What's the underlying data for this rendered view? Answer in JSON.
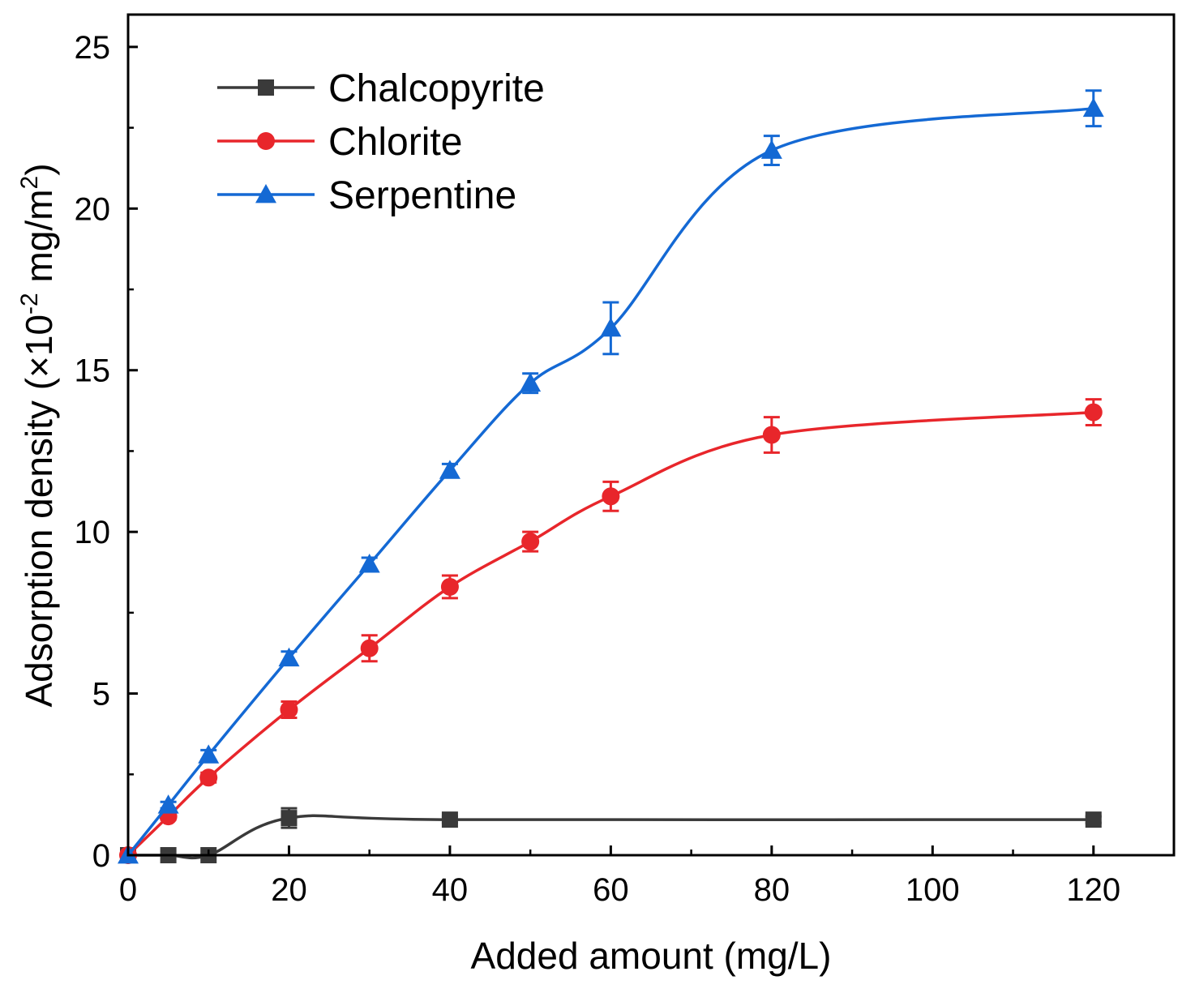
{
  "chart_data": {
    "type": "line",
    "xlabel": "Added amount (mg/L)",
    "ylabel": {
      "prefix": "Adsorption density (×10",
      "exp1": "-2",
      "middle": " mg/m",
      "exp2": "2",
      "suffix": ")"
    },
    "xlim": [
      0,
      130
    ],
    "ylim": [
      0,
      26
    ],
    "x_ticks": [
      0,
      20,
      40,
      60,
      80,
      100,
      120
    ],
    "x_tick_labels": [
      "0",
      "20",
      "40",
      "60",
      "80",
      "100",
      "120"
    ],
    "y_ticks": [
      0,
      5,
      10,
      15,
      20,
      25
    ],
    "y_tick_labels": [
      "0",
      "5",
      "10",
      "15",
      "20",
      "25"
    ],
    "legend_position": "top-left",
    "grid": false,
    "series": [
      {
        "name": "Chalcopyrite",
        "color": "#3a3a3a",
        "marker": "square",
        "x": [
          0,
          5,
          10,
          20,
          40,
          120
        ],
        "y": [
          0,
          0,
          0,
          1.15,
          1.1,
          1.1
        ],
        "error": [
          0,
          0,
          0,
          0.3,
          0.1,
          0.1
        ]
      },
      {
        "name": "Chlorite",
        "color": "#e8262b",
        "marker": "circle",
        "x": [
          0,
          5,
          10,
          20,
          30,
          40,
          50,
          60,
          80,
          120
        ],
        "y": [
          0,
          1.2,
          2.4,
          4.5,
          6.4,
          8.3,
          9.7,
          11.1,
          13.0,
          13.7
        ],
        "error": [
          0,
          0.1,
          0.15,
          0.25,
          0.4,
          0.35,
          0.3,
          0.45,
          0.55,
          0.4
        ]
      },
      {
        "name": "Serpentine",
        "color": "#1469d4",
        "marker": "triangle",
        "x": [
          0,
          5,
          10,
          20,
          30,
          40,
          50,
          60,
          80,
          120
        ],
        "y": [
          0,
          1.55,
          3.1,
          6.1,
          9.0,
          11.9,
          14.6,
          16.3,
          21.8,
          23.1
        ],
        "error": [
          0,
          0.1,
          0.15,
          0.2,
          0.2,
          0.2,
          0.3,
          0.8,
          0.45,
          0.55
        ]
      }
    ]
  }
}
